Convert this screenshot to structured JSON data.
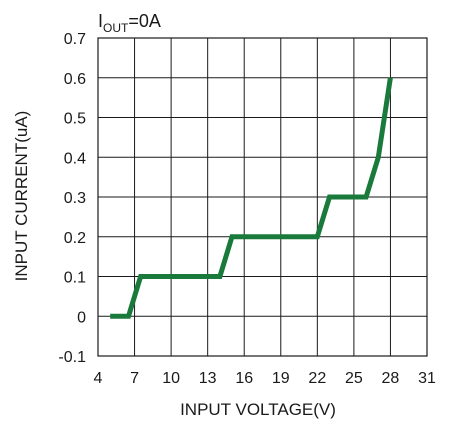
{
  "chart_data": {
    "type": "line",
    "title_main": "I",
    "title_sub": "OUT",
    "title_rest": "=0A",
    "xlabel": "INPUT VOLTAGE(V)",
    "ylabel": "INPUT CURRENT(uA)",
    "xlim": [
      4,
      31
    ],
    "ylim": [
      -0.1,
      0.7
    ],
    "xticks": [
      4,
      7,
      10,
      13,
      16,
      19,
      22,
      25,
      28,
      31
    ],
    "yticks": [
      -0.1,
      0,
      0.1,
      0.2,
      0.3,
      0.4,
      0.5,
      0.6,
      0.7
    ],
    "ytick_labels": [
      "-0.1",
      "0",
      "0.1",
      "0.2",
      "0.3",
      "0.4",
      "0.5",
      "0.6",
      "0.7"
    ],
    "grid": true,
    "line_color": "#1a7a3c",
    "series": [
      {
        "x": [
          5,
          6.5,
          7.5,
          14,
          15,
          22,
          23,
          26,
          27,
          28
        ],
        "y": [
          0,
          0,
          0.1,
          0.1,
          0.2,
          0.2,
          0.3,
          0.3,
          0.4,
          0.6
        ]
      }
    ]
  }
}
